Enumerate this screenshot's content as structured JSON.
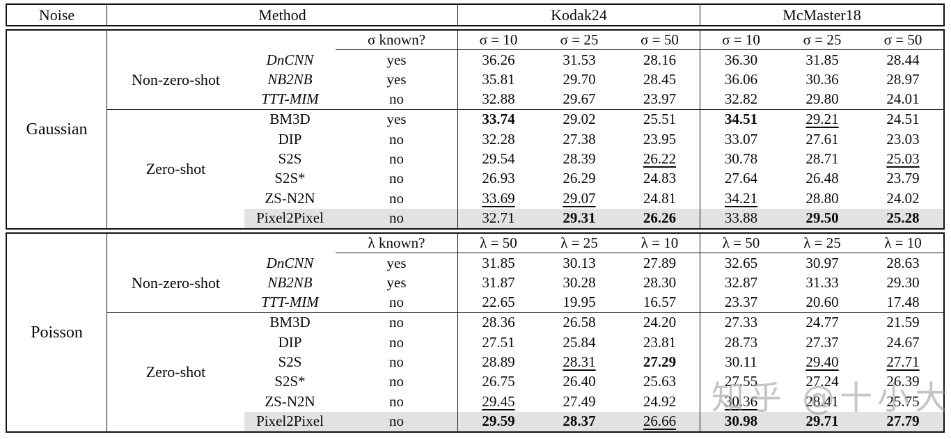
{
  "header": {
    "noise": "Noise",
    "method": "Method",
    "datasets": [
      "Kodak24",
      "McMaster18"
    ]
  },
  "watermark": "知乎 @十小大",
  "colors": {
    "highlight_row": "#e2e2e2",
    "border": "#111111",
    "watermark": "#969696"
  },
  "blocks": [
    {
      "noise_label": "Gaussian",
      "known_header": "σ known?",
      "col_headers": [
        "σ = 10",
        "σ = 25",
        "σ = 50",
        "σ = 10",
        "σ = 25",
        "σ = 50"
      ],
      "groups": [
        {
          "label": "Non-zero-shot",
          "rows": [
            {
              "method": "DnCNN",
              "italic": true,
              "known": "yes",
              "highlight": false,
              "values": [
                {
                  "v": "36.26",
                  "f": ""
                },
                {
                  "v": "31.53",
                  "f": ""
                },
                {
                  "v": "28.16",
                  "f": ""
                },
                {
                  "v": "36.30",
                  "f": ""
                },
                {
                  "v": "31.85",
                  "f": ""
                },
                {
                  "v": "28.44",
                  "f": ""
                }
              ]
            },
            {
              "method": "NB2NB",
              "italic": true,
              "known": "yes",
              "highlight": false,
              "values": [
                {
                  "v": "35.81",
                  "f": ""
                },
                {
                  "v": "29.70",
                  "f": ""
                },
                {
                  "v": "28.45",
                  "f": ""
                },
                {
                  "v": "36.06",
                  "f": ""
                },
                {
                  "v": "30.36",
                  "f": ""
                },
                {
                  "v": "28.97",
                  "f": ""
                }
              ]
            },
            {
              "method": "TTT-MIM",
              "italic": true,
              "known": "no",
              "highlight": false,
              "values": [
                {
                  "v": "32.88",
                  "f": ""
                },
                {
                  "v": "29.67",
                  "f": ""
                },
                {
                  "v": "23.97",
                  "f": ""
                },
                {
                  "v": "32.82",
                  "f": ""
                },
                {
                  "v": "29.80",
                  "f": ""
                },
                {
                  "v": "24.01",
                  "f": ""
                }
              ]
            }
          ]
        },
        {
          "label": "Zero-shot",
          "rows": [
            {
              "method": "BM3D",
              "italic": false,
              "known": "yes",
              "highlight": false,
              "values": [
                {
                  "v": "33.74",
                  "f": "b"
                },
                {
                  "v": "29.02",
                  "f": ""
                },
                {
                  "v": "25.51",
                  "f": ""
                },
                {
                  "v": "34.51",
                  "f": "b"
                },
                {
                  "v": "29.21",
                  "f": "u"
                },
                {
                  "v": "24.51",
                  "f": ""
                }
              ]
            },
            {
              "method": "DIP",
              "italic": false,
              "known": "no",
              "highlight": false,
              "values": [
                {
                  "v": "32.28",
                  "f": ""
                },
                {
                  "v": "27.38",
                  "f": ""
                },
                {
                  "v": "23.95",
                  "f": ""
                },
                {
                  "v": "33.07",
                  "f": ""
                },
                {
                  "v": "27.61",
                  "f": ""
                },
                {
                  "v": "23.03",
                  "f": ""
                }
              ]
            },
            {
              "method": "S2S",
              "italic": false,
              "known": "no",
              "highlight": false,
              "values": [
                {
                  "v": "29.54",
                  "f": ""
                },
                {
                  "v": "28.39",
                  "f": ""
                },
                {
                  "v": "26.22",
                  "f": "u"
                },
                {
                  "v": "30.78",
                  "f": ""
                },
                {
                  "v": "28.71",
                  "f": ""
                },
                {
                  "v": "25.03",
                  "f": "u"
                }
              ]
            },
            {
              "method": "S2S*",
              "italic": false,
              "known": "no",
              "highlight": false,
              "values": [
                {
                  "v": "26.93",
                  "f": ""
                },
                {
                  "v": "26.29",
                  "f": ""
                },
                {
                  "v": "24.83",
                  "f": ""
                },
                {
                  "v": "27.64",
                  "f": ""
                },
                {
                  "v": "26.48",
                  "f": ""
                },
                {
                  "v": "23.79",
                  "f": ""
                }
              ]
            },
            {
              "method": "ZS-N2N",
              "italic": false,
              "known": "no",
              "highlight": false,
              "values": [
                {
                  "v": "33.69",
                  "f": "u"
                },
                {
                  "v": "29.07",
                  "f": "u"
                },
                {
                  "v": "24.81",
                  "f": ""
                },
                {
                  "v": "34.21",
                  "f": "u"
                },
                {
                  "v": "28.80",
                  "f": ""
                },
                {
                  "v": "24.02",
                  "f": ""
                }
              ]
            },
            {
              "method": "Pixel2Pixel",
              "italic": false,
              "known": "no",
              "highlight": true,
              "values": [
                {
                  "v": "32.71",
                  "f": ""
                },
                {
                  "v": "29.31",
                  "f": "b"
                },
                {
                  "v": "26.26",
                  "f": "b"
                },
                {
                  "v": "33.88",
                  "f": ""
                },
                {
                  "v": "29.50",
                  "f": "b"
                },
                {
                  "v": "25.28",
                  "f": "b"
                }
              ]
            }
          ]
        }
      ]
    },
    {
      "noise_label": "Poisson",
      "known_header": "λ known?",
      "col_headers": [
        "λ = 50",
        "λ = 25",
        "λ = 10",
        "λ = 50",
        "λ = 25",
        "λ = 10"
      ],
      "groups": [
        {
          "label": "Non-zero-shot",
          "rows": [
            {
              "method": "DnCNN",
              "italic": true,
              "known": "yes",
              "highlight": false,
              "values": [
                {
                  "v": "31.85",
                  "f": ""
                },
                {
                  "v": "30.13",
                  "f": ""
                },
                {
                  "v": "27.89",
                  "f": ""
                },
                {
                  "v": "32.65",
                  "f": ""
                },
                {
                  "v": "30.97",
                  "f": ""
                },
                {
                  "v": "28.63",
                  "f": ""
                }
              ]
            },
            {
              "method": "NB2NB",
              "italic": true,
              "known": "yes",
              "highlight": false,
              "values": [
                {
                  "v": "31.87",
                  "f": ""
                },
                {
                  "v": "30.28",
                  "f": ""
                },
                {
                  "v": "28.30",
                  "f": ""
                },
                {
                  "v": "32.87",
                  "f": ""
                },
                {
                  "v": "31.33",
                  "f": ""
                },
                {
                  "v": "29.30",
                  "f": ""
                }
              ]
            },
            {
              "method": "TTT-MIM",
              "italic": true,
              "known": "no",
              "highlight": false,
              "values": [
                {
                  "v": "22.65",
                  "f": ""
                },
                {
                  "v": "19.95",
                  "f": ""
                },
                {
                  "v": "16.57",
                  "f": ""
                },
                {
                  "v": "23.37",
                  "f": ""
                },
                {
                  "v": "20.60",
                  "f": ""
                },
                {
                  "v": "17.48",
                  "f": ""
                }
              ]
            }
          ]
        },
        {
          "label": "Zero-shot",
          "rows": [
            {
              "method": "BM3D",
              "italic": false,
              "known": "no",
              "highlight": false,
              "values": [
                {
                  "v": "28.36",
                  "f": ""
                },
                {
                  "v": "26.58",
                  "f": ""
                },
                {
                  "v": "24.20",
                  "f": ""
                },
                {
                  "v": "27.33",
                  "f": ""
                },
                {
                  "v": "24.77",
                  "f": ""
                },
                {
                  "v": "21.59",
                  "f": ""
                }
              ]
            },
            {
              "method": "DIP",
              "italic": false,
              "known": "no",
              "highlight": false,
              "values": [
                {
                  "v": "27.51",
                  "f": ""
                },
                {
                  "v": "25.84",
                  "f": ""
                },
                {
                  "v": "23.81",
                  "f": ""
                },
                {
                  "v": "28.73",
                  "f": ""
                },
                {
                  "v": "27.37",
                  "f": ""
                },
                {
                  "v": "24.67",
                  "f": ""
                }
              ]
            },
            {
              "method": "S2S",
              "italic": false,
              "known": "no",
              "highlight": false,
              "values": [
                {
                  "v": "28.89",
                  "f": ""
                },
                {
                  "v": "28.31",
                  "f": "u"
                },
                {
                  "v": "27.29",
                  "f": "b"
                },
                {
                  "v": "30.11",
                  "f": ""
                },
                {
                  "v": "29.40",
                  "f": "u"
                },
                {
                  "v": "27.71",
                  "f": "u"
                }
              ]
            },
            {
              "method": "S2S*",
              "italic": false,
              "known": "no",
              "highlight": false,
              "values": [
                {
                  "v": "26.75",
                  "f": ""
                },
                {
                  "v": "26.40",
                  "f": ""
                },
                {
                  "v": "25.63",
                  "f": ""
                },
                {
                  "v": "27.55",
                  "f": ""
                },
                {
                  "v": "27.24",
                  "f": ""
                },
                {
                  "v": "26.39",
                  "f": ""
                }
              ]
            },
            {
              "method": "ZS-N2N",
              "italic": false,
              "known": "no",
              "highlight": false,
              "values": [
                {
                  "v": "29.45",
                  "f": "u"
                },
                {
                  "v": "27.49",
                  "f": ""
                },
                {
                  "v": "24.92",
                  "f": ""
                },
                {
                  "v": "30.36",
                  "f": "u"
                },
                {
                  "v": "28.41",
                  "f": ""
                },
                {
                  "v": "25.75",
                  "f": ""
                }
              ]
            },
            {
              "method": "Pixel2Pixel",
              "italic": false,
              "known": "no",
              "highlight": true,
              "values": [
                {
                  "v": "29.59",
                  "f": "b"
                },
                {
                  "v": "28.37",
                  "f": "b"
                },
                {
                  "v": "26.66",
                  "f": "u"
                },
                {
                  "v": "30.98",
                  "f": "b"
                },
                {
                  "v": "29.71",
                  "f": "b"
                },
                {
                  "v": "27.79",
                  "f": "b"
                }
              ]
            }
          ]
        }
      ]
    }
  ]
}
